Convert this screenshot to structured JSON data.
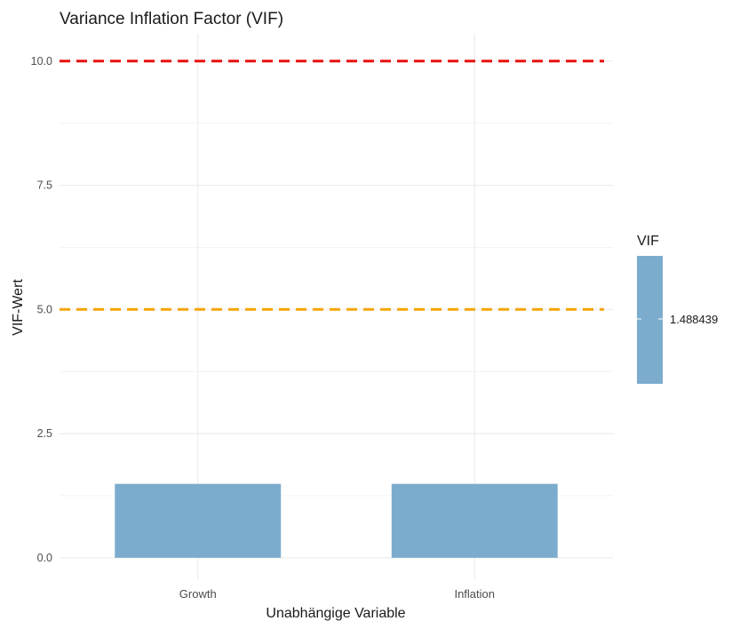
{
  "chart_data": {
    "type": "bar",
    "title": "Variance Inflation Factor (VIF)",
    "xlabel": "Unabhängige Variable",
    "ylabel": "VIF-Wert",
    "categories": [
      "Growth",
      "Inflation"
    ],
    "values": [
      1.488439,
      1.488439
    ],
    "ylim": [
      -0.45,
      10.55
    ],
    "yticks": [
      0.0,
      2.5,
      5.0,
      7.5,
      10.0
    ],
    "ytick_labels": [
      "0.0",
      "2.5",
      "5.0",
      "7.5",
      "10.0"
    ],
    "bar_color": "#7BACCE",
    "grid": true,
    "reference_lines": [
      {
        "y": 10,
        "color": "#E8100F",
        "style": "dashed"
      },
      {
        "y": 5,
        "color": "#F5A400",
        "style": "dashed"
      }
    ],
    "legend": {
      "title": "VIF",
      "position": "right",
      "label": "1.488439",
      "color": "#7BACCE"
    }
  }
}
